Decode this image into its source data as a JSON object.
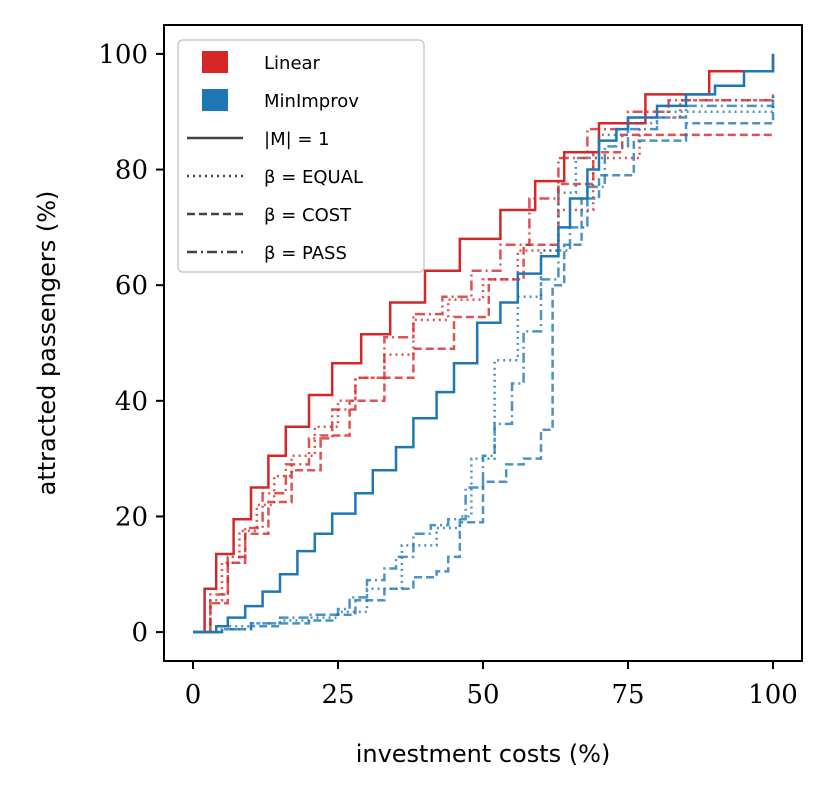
{
  "chart_data": {
    "type": "line",
    "title": "",
    "xlabel": "investment costs (%)",
    "ylabel": "attracted passengers (%)",
    "xlim": [
      -5,
      105
    ],
    "ylim": [
      -5,
      105
    ],
    "xticks": [
      0,
      25,
      50,
      75,
      100
    ],
    "yticks": [
      0,
      20,
      40,
      60,
      80,
      100
    ],
    "x_tick_labels": [
      "0",
      "25",
      "50",
      "75",
      "100"
    ],
    "y_tick_labels": [
      "0",
      "20",
      "40",
      "60",
      "80",
      "100"
    ],
    "grid": false,
    "legend_position": "top-left",
    "colors": {
      "Linear": "#d62728",
      "MinImprov": "#1f77b4",
      "neutral": "#444444"
    },
    "legend": [
      {
        "kind": "patch",
        "label": "Linear",
        "color": "#d62728"
      },
      {
        "kind": "patch",
        "label": "MinImprov",
        "color": "#1f77b4"
      },
      {
        "kind": "line",
        "label": "|M| = 1",
        "dash": "solid"
      },
      {
        "kind": "line",
        "label": "β = EQUAL",
        "dash": "dotted"
      },
      {
        "kind": "line",
        "label": "β = COST",
        "dash": "dashed"
      },
      {
        "kind": "line",
        "label": "β = PASS",
        "dash": "dashdot"
      }
    ],
    "series": [
      {
        "name": "Linear |M|=1",
        "method": "Linear",
        "beta": "|M| = 1",
        "style": "solid",
        "alpha": 1.0,
        "x": [
          0,
          2,
          4,
          7,
          10,
          13,
          16,
          20,
          24,
          29,
          34,
          40,
          46,
          53,
          59,
          64,
          70,
          78,
          89,
          100
        ],
        "y": [
          0,
          7.5,
          13.5,
          19.5,
          25,
          30.5,
          35.5,
          41,
          46.5,
          51.5,
          57,
          62.5,
          68,
          73,
          78,
          83,
          88,
          93,
          97,
          100
        ]
      },
      {
        "name": "Linear EQUAL",
        "method": "Linear",
        "beta": "EQUAL",
        "style": "dotted",
        "alpha": 0.8,
        "x": [
          0,
          3,
          5,
          8,
          11,
          14,
          17,
          21,
          25,
          28,
          33,
          38,
          44,
          50,
          56,
          63,
          69,
          77,
          84,
          100
        ],
        "y": [
          0,
          5.5,
          12,
          17.5,
          22,
          27,
          30.5,
          35.5,
          40,
          44,
          48,
          54,
          57.5,
          61,
          66,
          73,
          82,
          89,
          92,
          93
        ]
      },
      {
        "name": "Linear COST",
        "method": "Linear",
        "beta": "COST",
        "style": "dashed",
        "alpha": 0.8,
        "x": [
          0,
          3,
          6,
          9,
          13,
          17,
          22,
          27,
          33,
          38,
          45,
          51,
          57,
          63,
          69,
          74,
          84,
          100
        ],
        "y": [
          0,
          5,
          12,
          17,
          22.5,
          28,
          34,
          40,
          44,
          49,
          54.5,
          61,
          67,
          77.5,
          83,
          86,
          86,
          86
        ]
      },
      {
        "name": "Linear PASS",
        "method": "Linear",
        "beta": "PASS",
        "style": "dashdot",
        "alpha": 0.8,
        "x": [
          0,
          3,
          6,
          9,
          12,
          16,
          20,
          24,
          28,
          33,
          38,
          43,
          48,
          53,
          58,
          63,
          68,
          75,
          82,
          100
        ],
        "y": [
          0,
          6.5,
          13,
          18,
          24,
          29,
          33.5,
          38.5,
          44,
          51,
          55,
          58,
          62.5,
          67,
          75,
          82,
          87,
          90,
          92,
          93
        ]
      },
      {
        "name": "MinImprov |M|=1",
        "method": "MinImprov",
        "beta": "|M| = 1",
        "style": "solid",
        "alpha": 1.0,
        "x": [
          0,
          4,
          6,
          9,
          12,
          15,
          18,
          21,
          24,
          28,
          31,
          35,
          38,
          42,
          45,
          49,
          53,
          56,
          60,
          63,
          65,
          68,
          70,
          73,
          75,
          80,
          85,
          90,
          95,
          100
        ],
        "y": [
          0,
          1,
          2.5,
          4.5,
          7,
          10,
          14,
          17,
          20.5,
          24,
          28,
          32,
          37,
          41.5,
          46.5,
          53.5,
          57,
          62,
          65,
          70,
          75,
          80,
          85,
          87,
          89,
          91,
          93,
          94.5,
          97,
          100
        ]
      },
      {
        "name": "MinImprov EQUAL",
        "method": "MinImprov",
        "beta": "EQUAL",
        "style": "dotted",
        "alpha": 0.8,
        "x": [
          0,
          5,
          10,
          15,
          20,
          25,
          30,
          36,
          42,
          46,
          48,
          52,
          56,
          60,
          63,
          66,
          70,
          75,
          80,
          100
        ],
        "y": [
          0,
          1,
          1.5,
          2,
          2.5,
          3.5,
          7.5,
          15,
          18,
          20,
          30,
          47,
          58,
          66,
          76,
          82,
          86,
          88,
          90,
          92
        ]
      },
      {
        "name": "MinImprov COST",
        "method": "MinImprov",
        "beta": "COST",
        "style": "dashed",
        "alpha": 0.8,
        "x": [
          0,
          5,
          10,
          15,
          20,
          24,
          28,
          33,
          38,
          42,
          44,
          46,
          50,
          54,
          57,
          60,
          62,
          64,
          67,
          70,
          76,
          85,
          100
        ],
        "y": [
          0,
          0.5,
          1,
          1.5,
          2,
          3,
          5.5,
          7.5,
          9.5,
          10.5,
          13,
          19,
          26,
          29,
          30,
          35,
          60,
          67,
          75,
          79,
          85,
          88,
          91
        ]
      },
      {
        "name": "MinImprov PASS",
        "method": "MinImprov",
        "beta": "PASS",
        "style": "dashdot",
        "alpha": 0.8,
        "x": [
          0,
          5,
          10,
          15,
          20,
          25,
          27,
          30,
          33,
          35,
          38,
          41,
          44,
          47,
          50,
          52,
          55,
          57,
          60,
          63,
          65,
          68,
          71,
          75,
          80,
          85,
          100
        ],
        "y": [
          0,
          0.5,
          1.5,
          2.5,
          3,
          4,
          6,
          9,
          11,
          13,
          17,
          18.5,
          19.5,
          25,
          30.5,
          36,
          43,
          52,
          61,
          66,
          70,
          77,
          84,
          87,
          89,
          91,
          93
        ]
      }
    ]
  }
}
